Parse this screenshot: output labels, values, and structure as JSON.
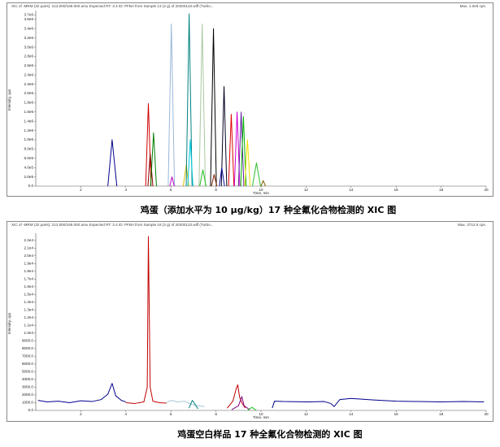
{
  "chart_data": [
    {
      "type": "line",
      "header": "XIC of -MRM (32 pairs): 213.000/169.000 amu Expected RT: 3.4 ID: PFBA from Sample 13 (2 g) of 20200123.wiff (Turbo...",
      "max_label": "Max. 1.0e6 cps.",
      "y_label": "Intensity, cps",
      "x_label": "Time, min",
      "caption": "鸡蛋（添加水平为 10 μg/kg）17 种全氟化合物检测的 XIC 图",
      "xlim": [
        0,
        20
      ],
      "xticks": [
        2,
        4,
        6,
        8,
        10,
        12,
        14,
        16,
        18,
        20
      ],
      "ylim": [
        0,
        3720000
      ],
      "yticks": [
        {
          "value": 0,
          "label": "0.0"
        },
        {
          "value": 200000,
          "label": "2.0e5"
        },
        {
          "value": 400000,
          "label": "4.0e5"
        },
        {
          "value": 600000,
          "label": "6.0e5"
        },
        {
          "value": 800000,
          "label": "8.0e5"
        },
        {
          "value": 1000000,
          "label": "1.0e6"
        },
        {
          "value": 1200000,
          "label": "1.2e6"
        },
        {
          "value": 1400000,
          "label": "1.4e6"
        },
        {
          "value": 1600000,
          "label": "1.6e6"
        },
        {
          "value": 1800000,
          "label": "1.8e6"
        },
        {
          "value": 2000000,
          "label": "2.0e6"
        },
        {
          "value": 2200000,
          "label": "2.2e6"
        },
        {
          "value": 2400000,
          "label": "2.4e6"
        },
        {
          "value": 2600000,
          "label": "2.6e6"
        },
        {
          "value": 2800000,
          "label": "2.8e6"
        },
        {
          "value": 3000000,
          "label": "3.0e6"
        },
        {
          "value": 3200000,
          "label": "3.2e6"
        },
        {
          "value": 3400000,
          "label": "3.4e6"
        },
        {
          "value": 3600000,
          "label": "3.6e6"
        },
        {
          "value": 3700000,
          "label": "3.7e6"
        }
      ],
      "series": [
        {
          "color": "#00008b",
          "x": [
            3.2,
            3.39,
            3.6
          ],
          "values": [
            0,
            1000000,
            0
          ]
        },
        {
          "color": "#d00000",
          "x": [
            4.88,
            5.0,
            5.12
          ],
          "values": [
            0,
            1780000,
            0
          ]
        },
        {
          "color": "#8b0000",
          "x": [
            4.98,
            5.08,
            5.2
          ],
          "values": [
            0,
            700000,
            0
          ]
        },
        {
          "color": "#008000",
          "x": [
            5.1,
            5.23,
            5.36
          ],
          "values": [
            0,
            1150000,
            0
          ]
        },
        {
          "color": "#9ab8d8",
          "x": [
            5.88,
            6.02,
            6.16
          ],
          "values": [
            0,
            3500000,
            0
          ]
        },
        {
          "color": "#c000c0",
          "x": [
            5.95,
            6.05,
            6.15
          ],
          "values": [
            0,
            200000,
            0
          ]
        },
        {
          "color": "#d8c000",
          "x": [
            6.55,
            6.68,
            6.8
          ],
          "values": [
            0,
            450000,
            0
          ]
        },
        {
          "color": "#008080",
          "x": [
            6.68,
            6.81,
            6.94
          ],
          "values": [
            0,
            3720000,
            0
          ]
        },
        {
          "color": "#00c8e0",
          "x": [
            6.75,
            6.86,
            6.98
          ],
          "values": [
            0,
            1000000,
            0
          ]
        },
        {
          "color": "#a8c8a0",
          "x": [
            7.25,
            7.39,
            7.53
          ],
          "values": [
            0,
            3500000,
            0
          ]
        },
        {
          "color": "#20c020",
          "x": [
            7.28,
            7.42,
            7.56
          ],
          "values": [
            0,
            350000,
            0
          ]
        },
        {
          "color": "#000000",
          "x": [
            7.76,
            7.89,
            8.02
          ],
          "values": [
            0,
            3400000,
            0
          ]
        },
        {
          "color": "#802000",
          "x": [
            7.8,
            7.92,
            8.04
          ],
          "values": [
            0,
            250000,
            0
          ]
        },
        {
          "color": "#000020",
          "x": [
            8.24,
            8.36,
            8.48
          ],
          "values": [
            0,
            2150000,
            0
          ]
        },
        {
          "color": "#1010a0",
          "x": [
            8.15,
            8.26,
            8.38
          ],
          "values": [
            0,
            400000,
            0
          ]
        },
        {
          "color": "#e00000",
          "x": [
            8.56,
            8.68,
            8.8
          ],
          "values": [
            0,
            1550000,
            0
          ]
        },
        {
          "color": "#d000d0",
          "x": [
            8.82,
            8.94,
            9.06
          ],
          "values": [
            0,
            1600000,
            0
          ]
        },
        {
          "color": "#6020a0",
          "x": [
            9.0,
            9.12,
            9.24
          ],
          "values": [
            0,
            1600000,
            0
          ]
        },
        {
          "color": "#00b000",
          "x": [
            9.1,
            9.22,
            9.34
          ],
          "values": [
            0,
            1500000,
            0
          ]
        },
        {
          "color": "#f0e000",
          "x": [
            9.28,
            9.4,
            9.52
          ],
          "values": [
            0,
            1000000,
            0
          ]
        },
        {
          "color": "#30c030",
          "x": [
            9.62,
            9.8,
            9.98
          ],
          "values": [
            0,
            500000,
            0
          ]
        },
        {
          "color": "#806000",
          "x": [
            10.0,
            10.1,
            10.2
          ],
          "values": [
            0,
            120000,
            0
          ]
        }
      ]
    },
    {
      "type": "line",
      "header": "XIC of -MRM (32 pairs): 213.000/169.000 amu Expected RT: 3.4 ID: PFBA from Sample 18 (2 g) of 20200123.wiff (Turbo...",
      "max_label": "Max. 3712.5 cps.",
      "y_label": "Intensity, cps",
      "x_label": "Time, min",
      "caption": "鸡蛋空白样品 17 种全氟化合物检测的 XIC 图",
      "xlim": [
        0,
        20
      ],
      "xticks": [
        2,
        4,
        6,
        8,
        10,
        12,
        14,
        16,
        18,
        20
      ],
      "ylim": [
        0,
        22500
      ],
      "yticks": [
        {
          "value": 0,
          "label": "0.0"
        },
        {
          "value": 1000,
          "label": "1000.0"
        },
        {
          "value": 2000,
          "label": "2000.0"
        },
        {
          "value": 3000,
          "label": "3000.0"
        },
        {
          "value": 4000,
          "label": "4000.0"
        },
        {
          "value": 5000,
          "label": "5000.0"
        },
        {
          "value": 6000,
          "label": "6000.0"
        },
        {
          "value": 7000,
          "label": "7000.0"
        },
        {
          "value": 8000,
          "label": "8000.0"
        },
        {
          "value": 9000,
          "label": "9000.0"
        },
        {
          "value": 10000,
          "label": "1.0e4"
        },
        {
          "value": 11000,
          "label": "1.1e4"
        },
        {
          "value": 12000,
          "label": "1.2e4"
        },
        {
          "value": 13000,
          "label": "1.3e4"
        },
        {
          "value": 14000,
          "label": "1.4e4"
        },
        {
          "value": 15000,
          "label": "1.5e4"
        },
        {
          "value": 16000,
          "label": "1.6e4"
        },
        {
          "value": 17000,
          "label": "1.7e4"
        },
        {
          "value": 18000,
          "label": "1.8e4"
        },
        {
          "value": 19000,
          "label": "1.9e4"
        },
        {
          "value": 20000,
          "label": "2.0e4"
        },
        {
          "value": 21000,
          "label": "2.1e4"
        },
        {
          "value": 22000,
          "label": "2.2e4"
        }
      ],
      "series": [
        {
          "color": "#00008b",
          "x": [
            0.1,
            0.5,
            1.0,
            1.5,
            2.0,
            2.5,
            2.9,
            3.2,
            3.39,
            3.55,
            3.8,
            4.0
          ],
          "values": [
            1300,
            1100,
            1200,
            1000,
            1250,
            1150,
            1400,
            2100,
            3500,
            1900,
            1300,
            1100
          ]
        },
        {
          "color": "#c00000",
          "x": [
            4.0,
            4.4,
            4.8,
            4.95,
            5.0,
            5.08,
            5.2,
            5.5,
            5.8
          ],
          "values": [
            1000,
            900,
            1100,
            3000,
            22500,
            3000,
            1200,
            1000,
            950
          ]
        },
        {
          "color": "#a8c8d8",
          "x": [
            5.8,
            6.0,
            6.3,
            6.6,
            6.9,
            7.2,
            7.5
          ],
          "values": [
            1000,
            1300,
            1100,
            1200,
            800,
            600,
            500
          ]
        },
        {
          "color": "#008080",
          "x": [
            6.8,
            6.95,
            7.05,
            7.2
          ],
          "values": [
            300,
            1300,
            900,
            200
          ]
        },
        {
          "color": "#c00000",
          "x": [
            8.5,
            8.75,
            8.9,
            8.97,
            9.05,
            9.15,
            9.3
          ],
          "values": [
            300,
            1200,
            2800,
            3300,
            1700,
            1000,
            300
          ]
        },
        {
          "color": "#800080",
          "x": [
            8.7,
            9.0,
            9.15,
            9.25,
            9.5
          ],
          "values": [
            100,
            600,
            1800,
            600,
            100
          ]
        },
        {
          "color": "#20c020",
          "x": [
            9.4,
            9.6,
            9.8
          ],
          "values": [
            0,
            400,
            0
          ]
        },
        {
          "color": "#00008b",
          "x": [
            10.5,
            10.6,
            11.0,
            12.0,
            12.8,
            13.1,
            13.25,
            13.5,
            14.0,
            15.0,
            16.0,
            17.0,
            18.0,
            19.0,
            19.9
          ],
          "values": [
            300,
            1200,
            1150,
            1100,
            1150,
            900,
            500,
            1400,
            1550,
            1350,
            1200,
            1150,
            1100,
            1150,
            1100
          ]
        }
      ]
    }
  ]
}
